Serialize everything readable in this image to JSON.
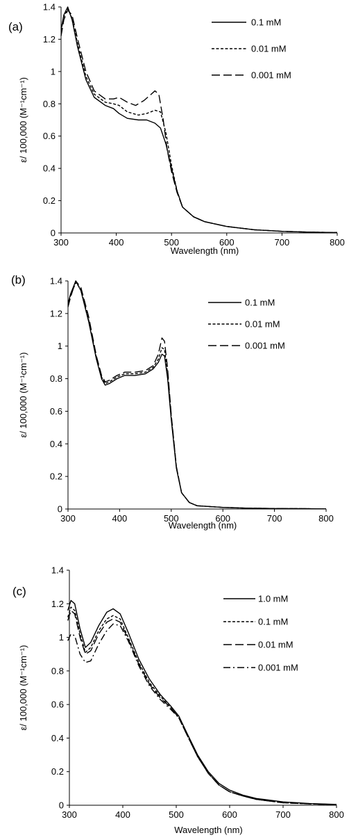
{
  "chart_data": [
    {
      "type": "line",
      "panel_label": "(a)",
      "xlabel": "Wavelength (nm)",
      "ylabel": "ε/ 100,000 (M⁻¹cm⁻¹)",
      "xlim": [
        300,
        800
      ],
      "ylim": [
        0,
        1.4
      ],
      "xticks": [
        "300",
        "400",
        "500",
        "600",
        "700",
        "800"
      ],
      "yticks": [
        "0",
        "0.2",
        "0.4",
        "0.6",
        "0.8",
        "1",
        "1.2",
        "1.4"
      ],
      "grid": false,
      "legend_position": "top-right",
      "series": [
        {
          "name": "0.1 mM",
          "dash": "solid",
          "x": [
            300,
            305,
            312,
            320,
            330,
            345,
            360,
            380,
            395,
            405,
            420,
            440,
            455,
            470,
            480,
            490,
            500,
            510,
            520,
            540,
            560,
            600,
            650,
            700,
            750,
            800
          ],
          "y": [
            1.26,
            1.35,
            1.4,
            1.32,
            1.15,
            0.95,
            0.84,
            0.79,
            0.77,
            0.74,
            0.71,
            0.7,
            0.7,
            0.68,
            0.65,
            0.55,
            0.4,
            0.26,
            0.16,
            0.1,
            0.07,
            0.04,
            0.02,
            0.01,
            0.005,
            0.002
          ]
        },
        {
          "name": "0.01 mM",
          "dash": "short",
          "x": [
            300,
            305,
            312,
            320,
            330,
            345,
            360,
            380,
            395,
            405,
            420,
            440,
            455,
            470,
            480,
            490,
            500,
            510,
            520,
            540,
            560,
            600,
            650,
            700,
            750,
            800
          ],
          "y": [
            1.25,
            1.34,
            1.39,
            1.33,
            1.17,
            0.97,
            0.86,
            0.81,
            0.8,
            0.79,
            0.75,
            0.73,
            0.74,
            0.76,
            0.75,
            0.62,
            0.42,
            0.26,
            0.16,
            0.1,
            0.07,
            0.04,
            0.02,
            0.01,
            0.005,
            0.002
          ]
        },
        {
          "name": "0.001 mM",
          "dash": "long",
          "x": [
            300,
            305,
            312,
            320,
            330,
            345,
            360,
            380,
            395,
            405,
            420,
            435,
            450,
            460,
            470,
            477,
            485,
            492,
            500,
            510,
            520,
            540,
            560,
            600,
            650,
            700,
            750,
            800
          ],
          "y": [
            1.22,
            1.32,
            1.38,
            1.35,
            1.2,
            1.0,
            0.88,
            0.83,
            0.83,
            0.84,
            0.81,
            0.79,
            0.82,
            0.85,
            0.88,
            0.86,
            0.7,
            0.52,
            0.38,
            0.25,
            0.16,
            0.1,
            0.07,
            0.04,
            0.02,
            0.01,
            0.005,
            0.002
          ]
        }
      ]
    },
    {
      "type": "line",
      "panel_label": "(b)",
      "xlabel": "Wavelength (nm)",
      "ylabel": "ε/ 100,000 (M⁻¹cm⁻¹)",
      "xlim": [
        300,
        800
      ],
      "ylim": [
        0,
        1.4
      ],
      "xticks": [
        "300",
        "400",
        "500",
        "600",
        "700",
        "800"
      ],
      "yticks": [
        "0",
        "0.2",
        "0.4",
        "0.6",
        "0.8",
        "1",
        "1.2",
        "1.4"
      ],
      "grid": false,
      "legend_position": "top-right",
      "series": [
        {
          "name": "0.1 mM",
          "dash": "solid",
          "x": [
            300,
            305,
            315,
            325,
            340,
            355,
            365,
            372,
            380,
            395,
            410,
            430,
            450,
            465,
            475,
            482,
            487,
            493,
            500,
            510,
            520,
            535,
            550,
            600,
            650,
            700,
            750,
            800
          ],
          "y": [
            1.26,
            1.32,
            1.4,
            1.34,
            1.15,
            0.92,
            0.8,
            0.76,
            0.77,
            0.8,
            0.82,
            0.82,
            0.83,
            0.86,
            0.9,
            0.95,
            0.94,
            0.8,
            0.55,
            0.25,
            0.1,
            0.04,
            0.02,
            0.01,
            0.005,
            0.003,
            0.002,
            0.001
          ]
        },
        {
          "name": "0.01 mM",
          "dash": "short",
          "x": [
            300,
            305,
            315,
            325,
            340,
            355,
            365,
            372,
            380,
            395,
            410,
            430,
            450,
            465,
            475,
            482,
            487,
            493,
            500,
            510,
            520,
            535,
            550,
            600,
            650,
            700,
            750,
            800
          ],
          "y": [
            1.25,
            1.31,
            1.39,
            1.35,
            1.16,
            0.93,
            0.81,
            0.77,
            0.78,
            0.81,
            0.83,
            0.83,
            0.84,
            0.87,
            0.92,
            0.99,
            0.98,
            0.83,
            0.57,
            0.26,
            0.1,
            0.04,
            0.02,
            0.01,
            0.005,
            0.003,
            0.002,
            0.001
          ]
        },
        {
          "name": "0.001 mM",
          "dash": "long",
          "x": [
            300,
            305,
            315,
            325,
            340,
            355,
            365,
            372,
            380,
            395,
            410,
            430,
            450,
            465,
            475,
            482,
            487,
            493,
            500,
            510,
            520,
            535,
            550,
            600,
            650,
            700,
            750,
            800
          ],
          "y": [
            1.24,
            1.3,
            1.4,
            1.36,
            1.18,
            0.94,
            0.82,
            0.78,
            0.79,
            0.82,
            0.84,
            0.84,
            0.85,
            0.88,
            0.95,
            1.05,
            1.03,
            0.86,
            0.58,
            0.26,
            0.1,
            0.04,
            0.02,
            0.01,
            0.005,
            0.003,
            0.002,
            0.001
          ]
        }
      ]
    },
    {
      "type": "line",
      "panel_label": "(c)",
      "xlabel": "Wavelength (nm)",
      "ylabel": "ε/ 100,000 (M⁻¹cm⁻¹)",
      "xlim": [
        300,
        800
      ],
      "ylim": [
        0,
        1.4
      ],
      "xticks": [
        "300",
        "400",
        "500",
        "600",
        "700",
        "800"
      ],
      "yticks": [
        "0",
        "0.2",
        "0.4",
        "0.6",
        "0.8",
        "1",
        "1.2",
        "1.4"
      ],
      "grid": false,
      "legend_position": "top-right",
      "series": [
        {
          "name": "1.0 mM",
          "dash": "solid",
          "x": [
            297,
            303,
            310,
            320,
            330,
            340,
            355,
            370,
            382,
            395,
            410,
            430,
            450,
            470,
            490,
            505,
            520,
            540,
            560,
            580,
            600,
            625,
            650,
            700,
            750,
            800
          ],
          "y": [
            1.16,
            1.22,
            1.2,
            1.05,
            0.94,
            0.97,
            1.07,
            1.15,
            1.17,
            1.14,
            1.03,
            0.87,
            0.75,
            0.66,
            0.59,
            0.53,
            0.43,
            0.3,
            0.2,
            0.13,
            0.09,
            0.06,
            0.04,
            0.02,
            0.01,
            0.005
          ]
        },
        {
          "name": "0.1 mM",
          "dash": "short",
          "x": [
            297,
            303,
            310,
            320,
            330,
            340,
            355,
            370,
            382,
            395,
            410,
            430,
            450,
            470,
            490,
            505,
            520,
            540,
            560,
            580,
            600,
            625,
            650,
            700,
            750,
            800
          ],
          "y": [
            1.12,
            1.18,
            1.16,
            1.02,
            0.91,
            0.94,
            1.04,
            1.11,
            1.13,
            1.11,
            1.0,
            0.85,
            0.73,
            0.65,
            0.58,
            0.52,
            0.42,
            0.29,
            0.19,
            0.12,
            0.08,
            0.055,
            0.035,
            0.015,
            0.008,
            0.004
          ]
        },
        {
          "name": "0.01 mM",
          "dash": "long",
          "x": [
            297,
            303,
            310,
            320,
            330,
            340,
            355,
            370,
            382,
            395,
            410,
            430,
            450,
            470,
            490,
            505,
            520,
            540,
            560,
            580,
            600,
            625,
            650,
            700,
            750,
            800
          ],
          "y": [
            1.1,
            1.16,
            1.14,
            1.0,
            0.9,
            0.92,
            1.02,
            1.09,
            1.11,
            1.09,
            0.99,
            0.84,
            0.72,
            0.64,
            0.58,
            0.52,
            0.42,
            0.29,
            0.19,
            0.12,
            0.08,
            0.055,
            0.035,
            0.015,
            0.008,
            0.004
          ]
        },
        {
          "name": "0.001 mM",
          "dash": "dashdot",
          "x": [
            297,
            303,
            310,
            320,
            330,
            340,
            355,
            370,
            382,
            395,
            410,
            430,
            450,
            470,
            490,
            505,
            520,
            540,
            560,
            580,
            600,
            625,
            650,
            700,
            750,
            800
          ],
          "y": [
            0.98,
            1.02,
            1.01,
            0.9,
            0.85,
            0.86,
            0.96,
            1.04,
            1.08,
            1.07,
            0.98,
            0.83,
            0.71,
            0.63,
            0.57,
            0.52,
            0.42,
            0.29,
            0.19,
            0.12,
            0.08,
            0.055,
            0.035,
            0.015,
            0.008,
            0.004
          ]
        }
      ]
    }
  ]
}
